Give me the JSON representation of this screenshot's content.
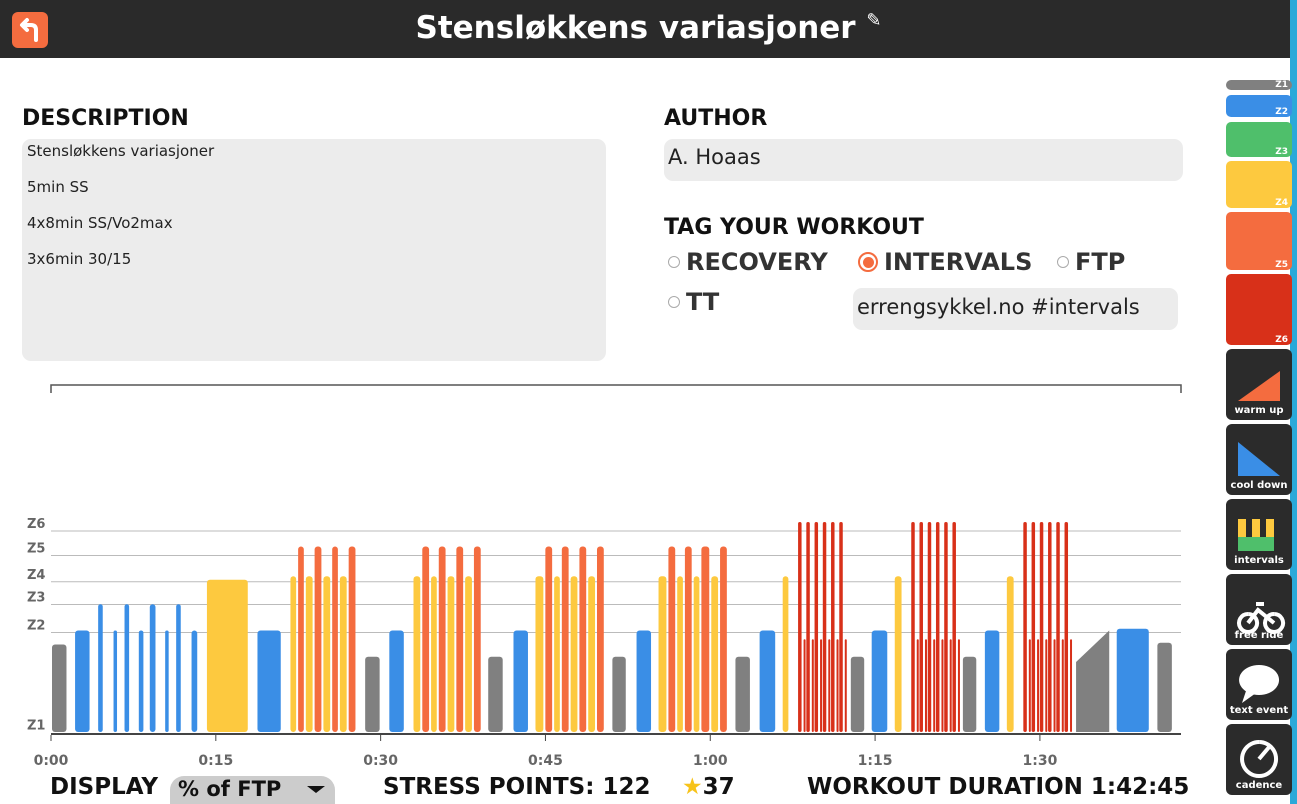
{
  "header": {
    "title": "Stensløkkens variasjoner"
  },
  "description": {
    "label": "DESCRIPTION",
    "lines": [
      "Stensløkkens variasjoner",
      "5min SS",
      "4x8min SS/Vo2max",
      "3x6min 30/15"
    ]
  },
  "author": {
    "label": "AUTHOR",
    "value": "A. Hoaas"
  },
  "tags": {
    "label": "TAG YOUR WORKOUT",
    "options": [
      {
        "label": "RECOVERY",
        "selected": false
      },
      {
        "label": "INTERVALS",
        "selected": true
      },
      {
        "label": "FTP",
        "selected": false
      },
      {
        "label": "TT",
        "selected": false
      }
    ],
    "custom": "errengsykkel.no #intervals"
  },
  "footer": {
    "display_label": "DISPLAY",
    "display_value": "% of FTP",
    "stress_label": "STRESS POINTS:",
    "stress_points": 122,
    "rating": 37,
    "duration_label": "WORKOUT DURATION",
    "duration": "1:42:45"
  },
  "zones": [
    {
      "name": "Z1",
      "color": "#808080"
    },
    {
      "name": "Z2",
      "color": "#3a8ee6"
    },
    {
      "name": "Z3",
      "color": "#4fbf6b"
    },
    {
      "name": "Z4",
      "color": "#fdc93f"
    },
    {
      "name": "Z5",
      "color": "#f46c3f"
    },
    {
      "name": "Z6",
      "color": "#d83019"
    }
  ],
  "tools": [
    "warm up",
    "cool down",
    "intervals",
    "free ride",
    "text event",
    "cadence"
  ],
  "chart_data": {
    "type": "bar",
    "xlim": [
      0,
      102.75
    ],
    "xticks": [
      {
        "value": 0,
        "label": "0:00"
      },
      {
        "value": 15,
        "label": "0:15"
      },
      {
        "value": 30,
        "label": "0:30"
      },
      {
        "value": 45,
        "label": "0:45"
      },
      {
        "value": 60,
        "label": "1:00"
      },
      {
        "value": 75,
        "label": "1:15"
      },
      {
        "value": 90,
        "label": "1:30"
      }
    ],
    "ylim": [
      0,
      120
    ],
    "yticks": [
      {
        "value": 5,
        "label": "Z1"
      },
      {
        "value": 62,
        "label": "Z2"
      },
      {
        "value": 78,
        "label": "Z3"
      },
      {
        "value": 91,
        "label": "Z4"
      },
      {
        "value": 106,
        "label": "Z5"
      },
      {
        "value": 120,
        "label": "Z6"
      }
    ],
    "grid": true,
    "blocks": [
      [
        0,
        1.5,
        50,
        0
      ],
      [
        2.1,
        3.6,
        58,
        1
      ],
      [
        4.2,
        4.8,
        73,
        1
      ],
      [
        5.6,
        6.1,
        58,
        1
      ],
      [
        6.6,
        7.2,
        73,
        1
      ],
      [
        7.9,
        8.5,
        58,
        1
      ],
      [
        8.9,
        9.6,
        73,
        1
      ],
      [
        10.3,
        10.8,
        58,
        1
      ],
      [
        11.3,
        11.9,
        73,
        1
      ],
      [
        12.7,
        13.4,
        58,
        1
      ],
      [
        14.1,
        18,
        87,
        3
      ],
      [
        18.7,
        21,
        58,
        1
      ],
      [
        21.7,
        22.4,
        89,
        3
      ],
      [
        22.4,
        23.1,
        106,
        4
      ],
      [
        23.1,
        23.9,
        89,
        3
      ],
      [
        23.9,
        24.7,
        106,
        4
      ],
      [
        24.7,
        25.5,
        89,
        3
      ],
      [
        25.5,
        26.2,
        106,
        4
      ],
      [
        26.2,
        27,
        89,
        3
      ],
      [
        27,
        27.8,
        106,
        4
      ],
      [
        28.5,
        30,
        43,
        0
      ],
      [
        30.7,
        32.2,
        58,
        1
      ],
      [
        32.9,
        33.7,
        89,
        3
      ],
      [
        33.7,
        34.5,
        106,
        4
      ],
      [
        34.5,
        35.2,
        89,
        3
      ],
      [
        35.2,
        36,
        106,
        4
      ],
      [
        36,
        36.8,
        89,
        3
      ],
      [
        36.8,
        37.6,
        106,
        4
      ],
      [
        37.6,
        38.4,
        89,
        3
      ],
      [
        38.4,
        39.2,
        106,
        4
      ],
      [
        39.7,
        41.2,
        43,
        0
      ],
      [
        42,
        43.5,
        58,
        1
      ],
      [
        44,
        44.9,
        89,
        3
      ],
      [
        44.9,
        45.7,
        106,
        4
      ],
      [
        45.7,
        46.4,
        89,
        3
      ],
      [
        46.4,
        47.2,
        106,
        4
      ],
      [
        47.2,
        48,
        89,
        3
      ],
      [
        48,
        48.8,
        106,
        4
      ],
      [
        48.8,
        49.6,
        89,
        3
      ],
      [
        49.6,
        50.4,
        106,
        4
      ],
      [
        51,
        52.4,
        43,
        0
      ],
      [
        53.2,
        54.7,
        58,
        1
      ],
      [
        55.2,
        56.1,
        89,
        3
      ],
      [
        56.1,
        56.9,
        106,
        4
      ],
      [
        56.9,
        57.6,
        89,
        3
      ],
      [
        57.6,
        58.4,
        106,
        4
      ],
      [
        58.4,
        59.1,
        89,
        3
      ],
      [
        59.1,
        60,
        106,
        4
      ],
      [
        60,
        60.8,
        89,
        3
      ],
      [
        60.8,
        61.6,
        106,
        4
      ],
      [
        62.2,
        63.7,
        43,
        0
      ],
      [
        64.4,
        66,
        58,
        1
      ],
      [
        66.5,
        67.2,
        89,
        3
      ],
      [
        67.9,
        68.4,
        120,
        5
      ],
      [
        68.4,
        68.65,
        53,
        5
      ],
      [
        68.65,
        69.15,
        120,
        5
      ],
      [
        69.15,
        69.4,
        53,
        5
      ],
      [
        69.4,
        69.9,
        120,
        5
      ],
      [
        69.9,
        70.15,
        53,
        5
      ],
      [
        70.15,
        70.65,
        120,
        5
      ],
      [
        70.65,
        70.9,
        53,
        5
      ],
      [
        70.9,
        71.4,
        120,
        5
      ],
      [
        71.4,
        71.65,
        53,
        5
      ],
      [
        71.65,
        72.15,
        120,
        5
      ],
      [
        72.15,
        72.4,
        53,
        5
      ],
      [
        72.7,
        74.1,
        43,
        0
      ],
      [
        74.6,
        76.2,
        58,
        1
      ],
      [
        76.7,
        77.5,
        89,
        3
      ],
      [
        78.2,
        78.7,
        120,
        5
      ],
      [
        78.7,
        78.95,
        53,
        5
      ],
      [
        78.95,
        79.45,
        120,
        5
      ],
      [
        79.45,
        79.7,
        53,
        5
      ],
      [
        79.7,
        80.2,
        120,
        5
      ],
      [
        80.2,
        80.45,
        53,
        5
      ],
      [
        80.45,
        80.95,
        120,
        5
      ],
      [
        80.95,
        81.2,
        53,
        5
      ],
      [
        81.2,
        81.7,
        120,
        5
      ],
      [
        81.7,
        81.95,
        53,
        5
      ],
      [
        81.95,
        82.45,
        120,
        5
      ],
      [
        82.45,
        82.7,
        53,
        5
      ],
      [
        82.9,
        84.3,
        43,
        0
      ],
      [
        84.9,
        86.4,
        58,
        1
      ],
      [
        86.9,
        87.7,
        89,
        3
      ],
      [
        88.4,
        88.9,
        120,
        5
      ],
      [
        88.9,
        89.15,
        53,
        5
      ],
      [
        89.15,
        89.65,
        120,
        5
      ],
      [
        89.65,
        89.9,
        53,
        5
      ],
      [
        89.9,
        90.4,
        120,
        5
      ],
      [
        90.4,
        90.65,
        53,
        5
      ],
      [
        90.65,
        91.15,
        120,
        5
      ],
      [
        91.15,
        91.4,
        53,
        5
      ],
      [
        91.4,
        91.9,
        120,
        5
      ],
      [
        91.9,
        92.15,
        53,
        5
      ],
      [
        92.15,
        92.65,
        120,
        5
      ],
      [
        92.65,
        92.9,
        53,
        5
      ],
      [
        93.2,
        96.4,
        40,
        0,
        58
      ],
      [
        96.9,
        100,
        59,
        1
      ],
      [
        100.6,
        102.1,
        51,
        0
      ]
    ]
  }
}
